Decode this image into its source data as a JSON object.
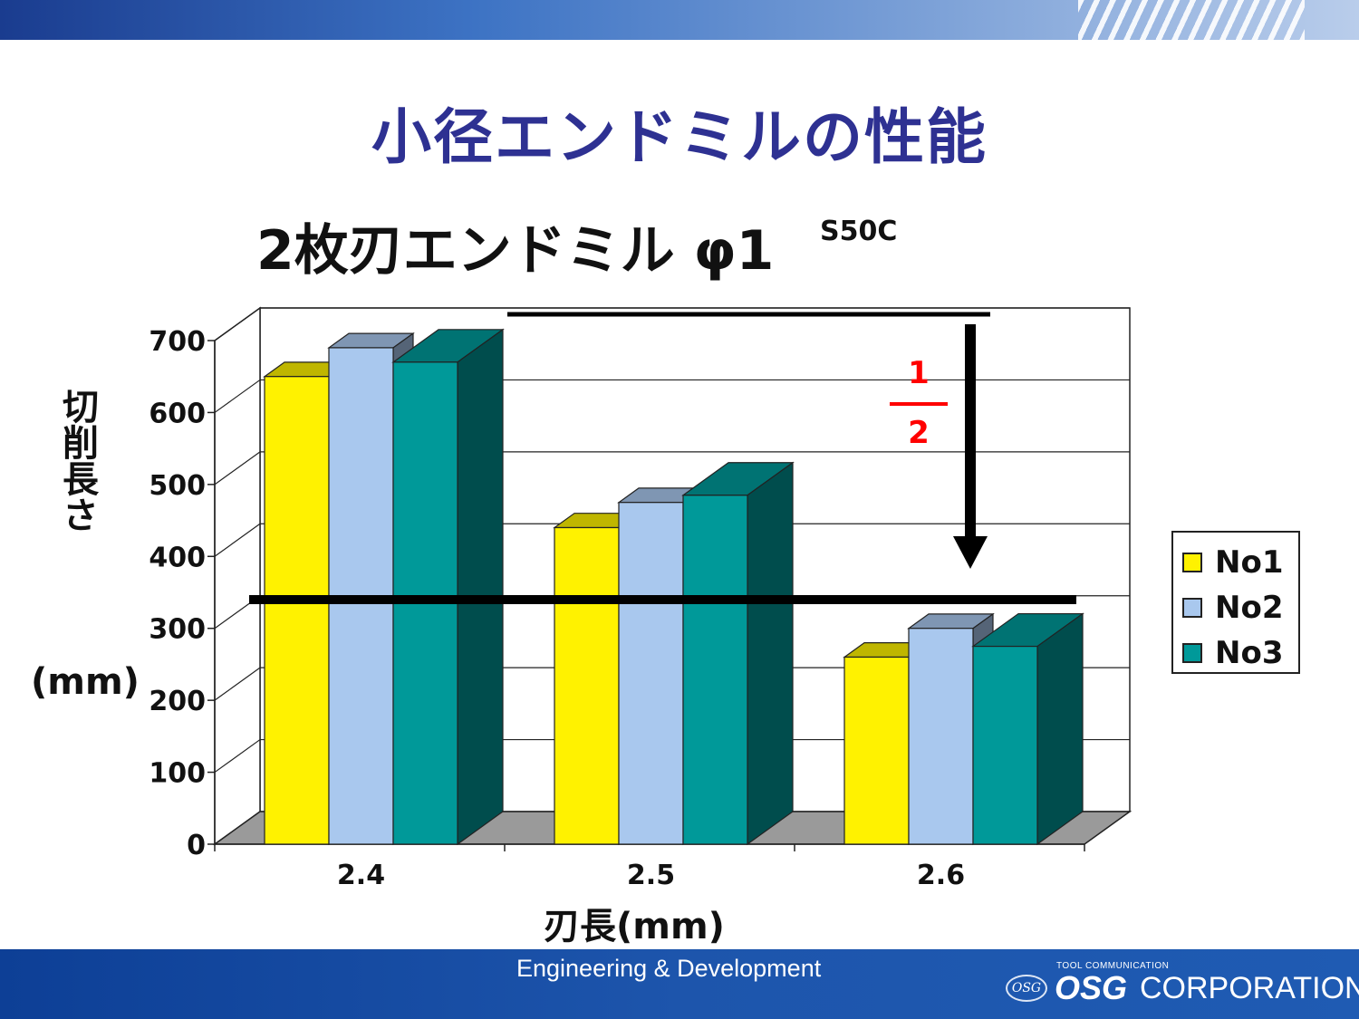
{
  "header": {
    "title": "小径エンドミルの性能"
  },
  "chart_title": "2枚刃エンドミル φ1",
  "material": "S50C",
  "annotation": {
    "numerator": "1",
    "denominator": "2"
  },
  "footer": {
    "text": "Engineering & Development",
    "logo_small": "TOOL COMMUNICATION",
    "logo_mark": "OSG",
    "logo_brand": "OSG",
    "logo_corp": "CORPORATION"
  },
  "colors": {
    "No1": "#fff200",
    "No2": "#a9c8ee",
    "No3": "#009999",
    "title": "#2e3192",
    "annotation": "#ff0000"
  },
  "chart_data": {
    "type": "bar",
    "title": "2枚刃エンドミル φ1",
    "xlabel": "刃長(mm)",
    "ylabel": "切削長さ",
    "ylabel_unit": "(mm)",
    "categories": [
      "2.4",
      "2.5",
      "2.6"
    ],
    "series": [
      {
        "name": "No1",
        "values": [
          650,
          440,
          260
        ]
      },
      {
        "name": "No2",
        "values": [
          690,
          475,
          300
        ]
      },
      {
        "name": "No3",
        "values": [
          670,
          485,
          275
        ]
      }
    ],
    "ylim": [
      0,
      700
    ],
    "yticks": [
      "0",
      "100",
      "200",
      "300",
      "400",
      "500",
      "600",
      "700"
    ],
    "grid": true,
    "legend": "right",
    "reference_lines": [
      700,
      350
    ]
  }
}
